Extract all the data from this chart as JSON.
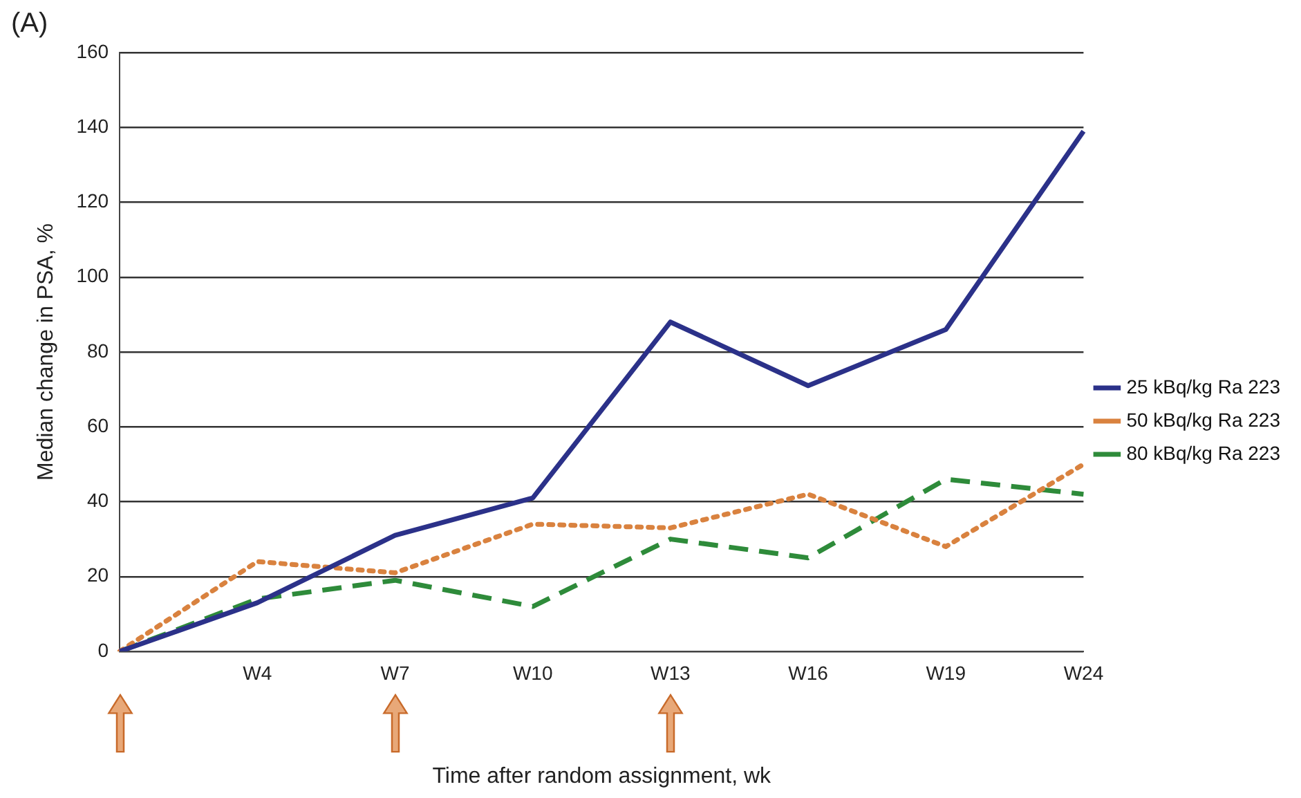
{
  "chart_data": {
    "type": "line",
    "title": "(A)",
    "xlabel": "Time after random assignment, wk",
    "ylabel": "Median change in PSA, %",
    "categories": [
      null,
      "W4",
      "W7",
      "W10",
      "W13",
      "W16",
      "W19",
      "W24"
    ],
    "series": [
      {
        "name": "25 kBq/kg Ra 223",
        "color": "#2b3189",
        "line_style": "solid",
        "values": [
          0,
          13,
          31,
          41,
          88,
          71,
          86,
          139
        ]
      },
      {
        "name": "50 kBq/kg Ra 223",
        "color": "#d9823f",
        "line_style": "dotted",
        "values": [
          0,
          24,
          21,
          34,
          33,
          42,
          28,
          50
        ]
      },
      {
        "name": "80 kBq/kg Ra 223",
        "color": "#2e8b3a",
        "line_style": "dashed",
        "values": [
          0,
          14,
          19,
          12,
          30,
          25,
          46,
          42
        ]
      }
    ],
    "ylim": [
      0,
      160
    ],
    "yticks": [
      0,
      20,
      40,
      60,
      80,
      100,
      120,
      140,
      160
    ],
    "grid": "y",
    "legend": "right",
    "marker": "none"
  }
}
